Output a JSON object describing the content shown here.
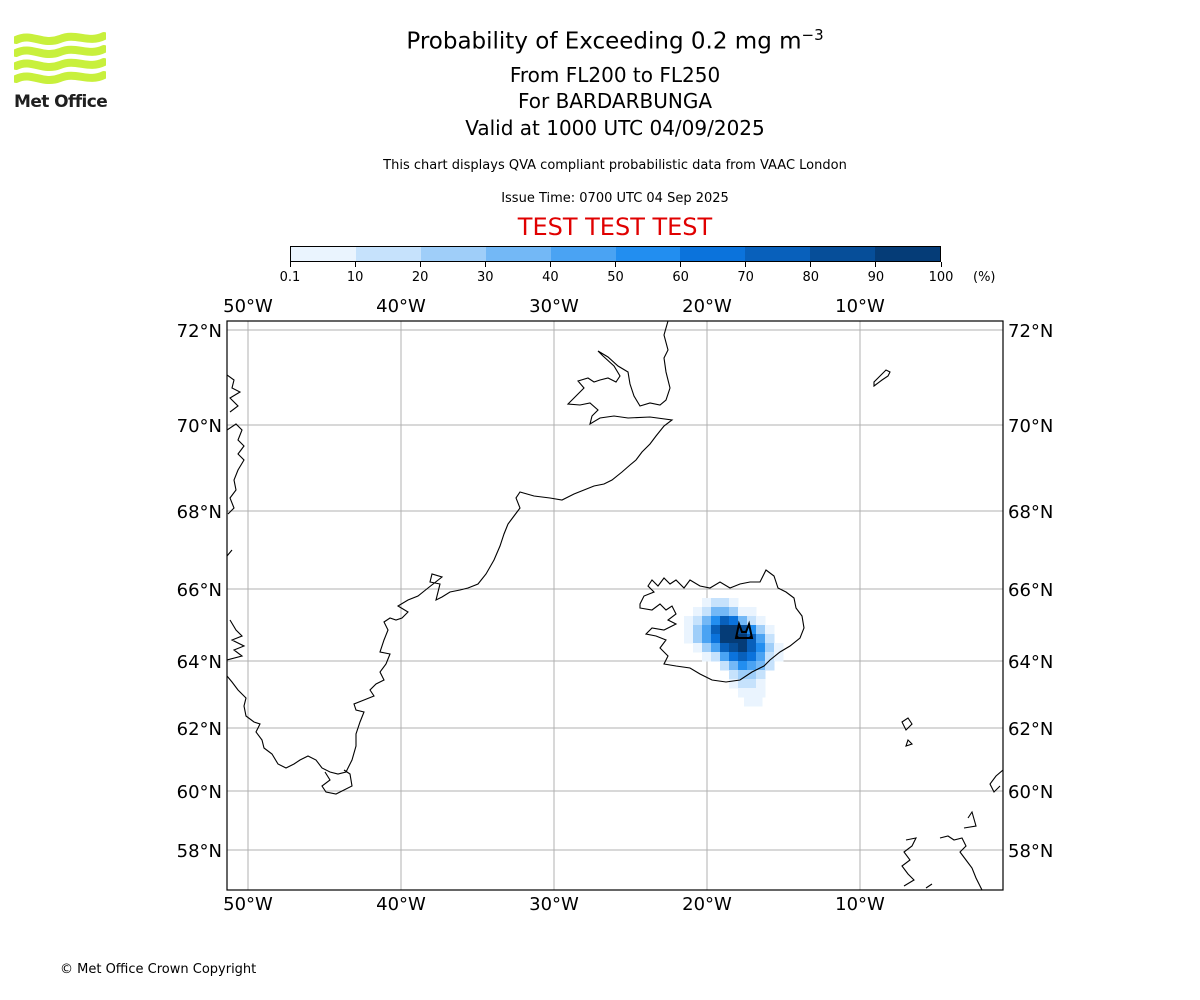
{
  "logo": {
    "text": "Met Office",
    "color": "#c8f03c"
  },
  "title": {
    "line1": "Probability of Exceeding 0.2 mg m",
    "line1_superscript": "−3",
    "line2": "From FL200 to FL250",
    "line3": "For BARDARBUNGA",
    "line4": "Valid at 1000 UTC 04/09/2025"
  },
  "description": "This chart displays QVA compliant probabilistic data from VAAC London",
  "issue_time": "Issue Time: 0700 UTC 04 Sep 2025",
  "test_banner": {
    "text": "TEST TEST TEST",
    "color": "#e00000"
  },
  "colorbar": {
    "tick_labels": [
      "0.1",
      "10",
      "20",
      "30",
      "40",
      "50",
      "60",
      "70",
      "80",
      "90",
      "100"
    ],
    "unit": "(%)",
    "colors": [
      "#eaf4fe",
      "#c6e2fc",
      "#9fcef9",
      "#73b8f6",
      "#4aa3f3",
      "#228ef0",
      "#0b73dc",
      "#0860bb",
      "#064e99",
      "#053c77",
      "#032a55"
    ]
  },
  "map": {
    "lon_labels": [
      "50°W",
      "40°W",
      "30°W",
      "20°W",
      "10°W"
    ],
    "lat_labels": [
      "72°N",
      "70°N",
      "68°N",
      "66°N",
      "64°N",
      "62°N",
      "60°N",
      "58°N"
    ],
    "grid": true,
    "volcano": {
      "name": "BARDARBUNGA",
      "icon": "volcano-icon"
    }
  },
  "footer": "© Met Office Crown Copyright"
}
